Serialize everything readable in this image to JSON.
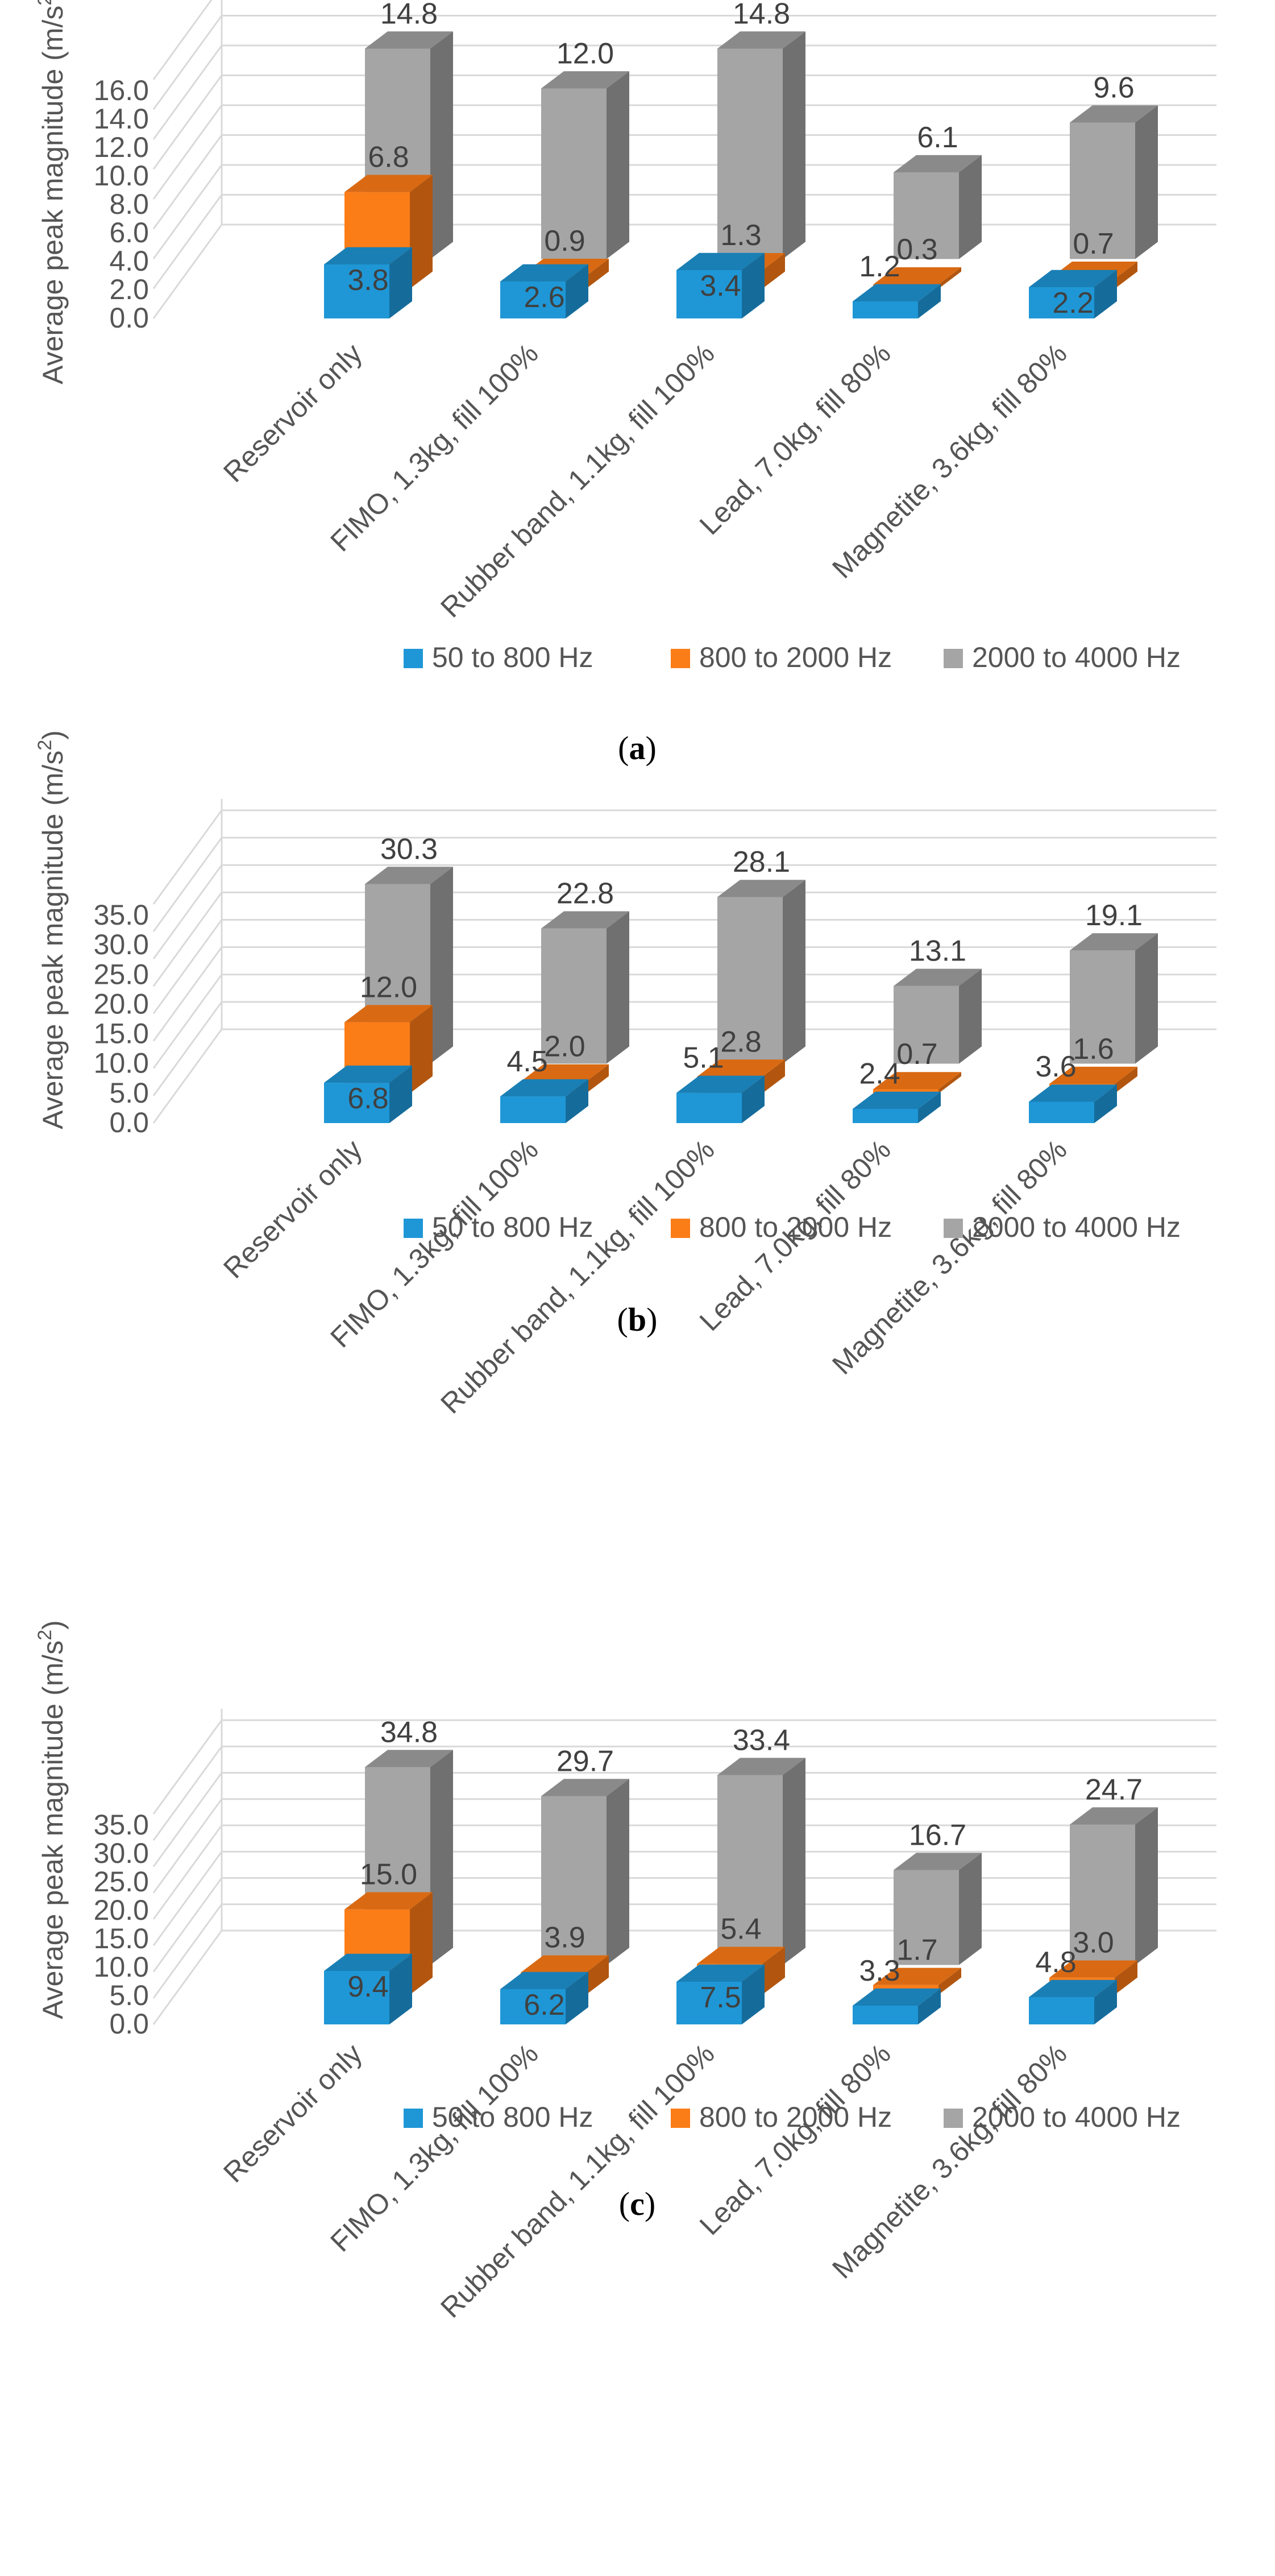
{
  "y_axis_title": "Average peak magnitude (m/s",
  "y_axis_title_sup": "2",
  "y_axis_title_end": ")",
  "colors": {
    "blue": "#1f97d6",
    "blue_side": "#156c9b",
    "blue_top": "#1a7fb5",
    "orange": "#fb7d18",
    "orange_side": "#b2560f",
    "orange_top": "#d96a13",
    "gray": "#a5a5a5",
    "gray_side": "#707070",
    "gray_top": "#8a8a8a",
    "grid": "#d9d9d9",
    "text": "#555555"
  },
  "chart_data": [
    {
      "type": "bar",
      "caption": "a",
      "categories": [
        "Reservoir only",
        "FIMO, 1.3kg, fill 100%",
        "Rubber band, 1.1kg, fill 100%",
        "Lead, 7.0kg, fill 80%",
        "Magnetite, 3.6kg, fill 80%"
      ],
      "series": [
        {
          "name": "50 to 800 Hz",
          "values": [
            3.8,
            2.6,
            3.4,
            1.2,
            2.2
          ],
          "labels": [
            "3.8",
            "2.6",
            "3.4",
            "1.2",
            "2.2"
          ]
        },
        {
          "name": "800 to 2000 Hz",
          "values": [
            6.8,
            0.9,
            1.3,
            0.3,
            0.7
          ],
          "labels": [
            "6.8",
            "0.9",
            "1.3",
            "0.3",
            "0.7"
          ]
        },
        {
          "name": "2000 to 4000 Hz",
          "values": [
            14.8,
            12.0,
            14.8,
            6.1,
            9.6
          ],
          "labels": [
            "14.8",
            "12.0",
            "14.8",
            "6.1",
            "9.6"
          ]
        }
      ],
      "yticks": [
        "0.0",
        "2.0",
        "4.0",
        "6.0",
        "8.0",
        "10.0",
        "12.0",
        "14.0",
        "16.0"
      ],
      "ylim": [
        0,
        16
      ]
    },
    {
      "type": "bar",
      "caption": "b",
      "categories": [
        "Reservoir only",
        "FIMO, 1.3kg, fill 100%",
        "Rubber band, 1.1kg, fill 100%",
        "Lead, 7.0kg, fill 80%",
        "Magnetite, 3.6kg, fill 80%"
      ],
      "series": [
        {
          "name": "50 to 800 Hz",
          "values": [
            6.8,
            4.5,
            5.1,
            2.4,
            3.6
          ],
          "labels": [
            "6.8",
            "4.5",
            "5.1",
            "2.4",
            "3.6"
          ]
        },
        {
          "name": "800 to 2000 Hz",
          "values": [
            12.0,
            2.0,
            2.8,
            0.7,
            1.6
          ],
          "labels": [
            "12.0",
            "2.0",
            "2.8",
            "0.7",
            "1.6"
          ]
        },
        {
          "name": "2000 to 4000 Hz",
          "values": [
            30.3,
            22.8,
            28.1,
            13.1,
            19.1
          ],
          "labels": [
            "30.3",
            "22.8",
            "28.1",
            "13.1",
            "19.1"
          ]
        }
      ],
      "yticks": [
        "0.0",
        "5.0",
        "10.0",
        "15.0",
        "20.0",
        "25.0",
        "30.0",
        "35.0"
      ],
      "ylim": [
        0,
        35
      ]
    },
    {
      "type": "bar",
      "caption": "c",
      "categories": [
        "Reservoir only",
        "FIMO, 1.3kg, fill 100%",
        "Rubber band, 1.1kg, fill 100%",
        "Lead, 7.0kg, fill 80%",
        "Magnetite, 3.6kg, fill 80%"
      ],
      "series": [
        {
          "name": "50 to 800 Hz",
          "values": [
            9.4,
            6.2,
            7.5,
            3.3,
            4.8
          ],
          "labels": [
            "9.4",
            "6.2",
            "7.5",
            "3.3",
            "4.8"
          ]
        },
        {
          "name": "800 to 2000 Hz",
          "values": [
            15.0,
            3.9,
            5.4,
            1.7,
            3.0
          ],
          "labels": [
            "15.0",
            "3.9",
            "5.4",
            "1.7",
            "3.0"
          ]
        },
        {
          "name": "2000 to 4000 Hz",
          "values": [
            34.8,
            29.7,
            33.4,
            16.7,
            24.7
          ],
          "labels": [
            "34.8",
            "29.7",
            "33.4",
            "16.7",
            "24.7"
          ]
        }
      ],
      "yticks": [
        "0.0",
        "5.0",
        "10.0",
        "15.0",
        "20.0",
        "25.0",
        "30.0",
        "35.0"
      ],
      "ylim": [
        0,
        35
      ]
    }
  ]
}
